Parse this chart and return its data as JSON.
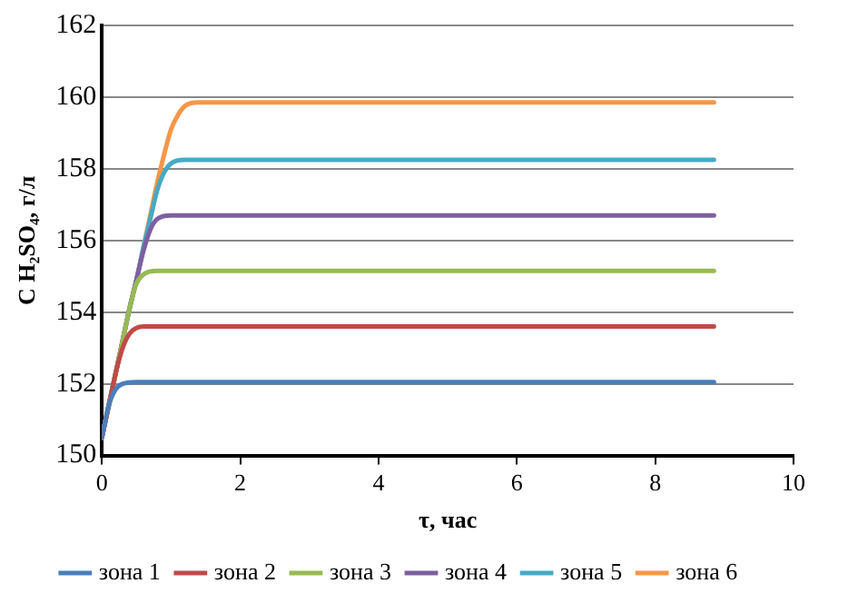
{
  "chart_data": {
    "type": "line",
    "xlabel": "τ, час",
    "ylabel": "C H₂SO₄, г/л",
    "xlim": [
      0,
      10
    ],
    "xticks": [
      0,
      2,
      4,
      6,
      8,
      10
    ],
    "ylim": [
      150,
      162
    ],
    "yticks": [
      150,
      152,
      154,
      156,
      158,
      160,
      162
    ],
    "grid": "y",
    "legend": "bottom",
    "marker": "none",
    "line_style": "solid",
    "series": [
      {
        "name": "зона 1",
        "color": "#4a7ebb",
        "x": [
          0,
          0.1,
          0.2,
          0.3,
          0.5,
          2,
          4,
          6,
          8,
          8.85
        ],
        "values": [
          150.5,
          151.4,
          151.85,
          152.0,
          152.05,
          152.05,
          152.05,
          152.05,
          152.05,
          152.05
        ]
      },
      {
        "name": "зона 2",
        "color": "#be4b48",
        "x": [
          0,
          0.1,
          0.2,
          0.3,
          0.4,
          0.6,
          2,
          4,
          6,
          8,
          8.85
        ],
        "values": [
          150.5,
          151.4,
          152.3,
          153.0,
          153.4,
          153.6,
          153.6,
          153.6,
          153.6,
          153.6,
          153.6
        ]
      },
      {
        "name": "зона 3",
        "color": "#98b954",
        "x": [
          0,
          0.1,
          0.2,
          0.3,
          0.4,
          0.5,
          0.6,
          0.8,
          2,
          4,
          6,
          8,
          8.85
        ],
        "values": [
          150.5,
          151.4,
          152.3,
          153.2,
          154.1,
          154.8,
          155.05,
          155.15,
          155.15,
          155.15,
          155.15,
          155.15,
          155.15
        ]
      },
      {
        "name": "зона 4",
        "color": "#7d60a0",
        "x": [
          0,
          0.1,
          0.2,
          0.3,
          0.4,
          0.5,
          0.6,
          0.7,
          0.8,
          1.0,
          2,
          4,
          6,
          8,
          8.85
        ],
        "values": [
          150.5,
          151.4,
          152.3,
          153.2,
          154.1,
          154.9,
          155.7,
          156.3,
          156.6,
          156.7,
          156.7,
          156.7,
          156.7,
          156.7,
          156.7
        ]
      },
      {
        "name": "зона 5",
        "color": "#46aac5",
        "x": [
          0,
          0.1,
          0.2,
          0.3,
          0.4,
          0.5,
          0.6,
          0.7,
          0.8,
          0.9,
          1.0,
          1.2,
          2,
          4,
          6,
          8,
          8.85
        ],
        "values": [
          150.5,
          151.4,
          152.3,
          153.2,
          154.1,
          154.9,
          155.8,
          156.6,
          157.4,
          157.9,
          158.15,
          158.25,
          158.25,
          158.25,
          158.25,
          158.25,
          158.25
        ]
      },
      {
        "name": "зона 6",
        "color": "#f79646",
        "x": [
          0,
          0.1,
          0.2,
          0.3,
          0.4,
          0.5,
          0.6,
          0.7,
          0.8,
          0.9,
          1.0,
          1.1,
          1.2,
          1.4,
          2,
          4,
          6,
          8,
          8.85
        ],
        "values": [
          150.5,
          151.4,
          152.3,
          153.2,
          154.1,
          154.9,
          155.8,
          156.7,
          157.6,
          158.4,
          159.1,
          159.5,
          159.75,
          159.85,
          159.85,
          159.85,
          159.85,
          159.85,
          159.85
        ]
      }
    ]
  }
}
